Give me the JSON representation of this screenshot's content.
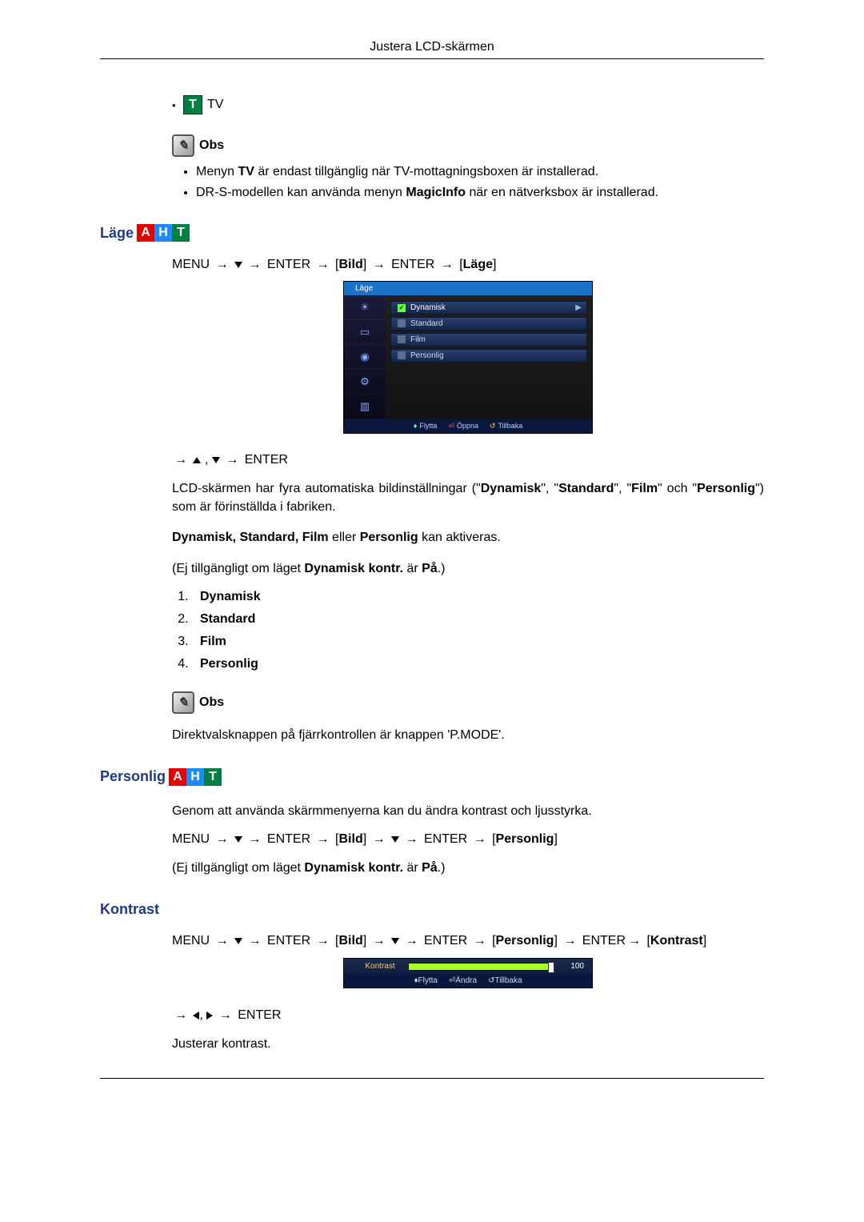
{
  "header": "Justera LCD-skärmen",
  "tv_row": {
    "label": "TV",
    "icon": "T"
  },
  "obs_label": "Obs",
  "tv_notes": [
    {
      "pre": "Menyn ",
      "bold": "TV",
      "post": " är endast tillgänglig när TV-mottagningsboxen är installerad."
    },
    {
      "pre": "DR-S-modellen kan använda menyn ",
      "bold": "MagicInfo",
      "post": " när en nätverksbox är installerad."
    }
  ],
  "section_lage": {
    "title": "Läge",
    "icons": [
      "A",
      "H",
      "T"
    ],
    "path_end": "Läge",
    "osd": {
      "title": "Läge",
      "active": "Dynamisk",
      "rows": [
        "Standard",
        "Film",
        "Personlig"
      ],
      "footer": {
        "move": "Flytta",
        "open": "Öppna",
        "back": "Tillbaka"
      }
    },
    "post_arrows_label": "ENTER",
    "para1_pre": "LCD-skärmen har fyra automatiska bildinställningar (\"",
    "para1_modes": [
      "Dynamisk",
      "Standard",
      "Film"
    ],
    "para1_and": "\" och \"",
    "para1_last": "Personlig",
    "para1_post": "\") som är förinställda i fabriken.",
    "para2_bold": "Dynamisk, Standard, Film",
    "para2_mid": " eller ",
    "para2_bold2": "Personlig",
    "para2_post": " kan aktiveras.",
    "para3_pre": "(Ej tillgängligt om läget ",
    "para3_bold": "Dynamisk kontr.",
    "para3_mid": " är ",
    "para3_bold2": "På",
    "para3_post": ".)",
    "list": [
      "Dynamisk",
      "Standard",
      "Film",
      "Personlig"
    ],
    "note": "Direktvalsknappen på fjärrkontrollen är knappen 'P.MODE'."
  },
  "section_personlig": {
    "title": "Personlig",
    "icons": [
      "A",
      "H",
      "T"
    ],
    "intro": "Genom att använda skärmmenyerna kan du ändra kontrast och ljusstyrka.",
    "path_end": "Personlig",
    "avail_pre": "(Ej tillgängligt om läget ",
    "avail_bold": "Dynamisk kontr.",
    "avail_mid": " är ",
    "avail_bold2": "På",
    "avail_post": ".)"
  },
  "section_kontrast": {
    "title": "Kontrast",
    "path_mid": "Personlig",
    "path_end": "Kontrast",
    "slider": {
      "label": "Kontrast",
      "value": "100",
      "fill_pct": 100,
      "footer": {
        "move": "Flytta",
        "adjust": "Ändra",
        "back": "Tillbaka"
      }
    },
    "post_arrows_label": "ENTER",
    "para": "Justerar kontrast."
  },
  "menu_word": "MENU",
  "enter_word": "ENTER",
  "bild_word": "Bild"
}
